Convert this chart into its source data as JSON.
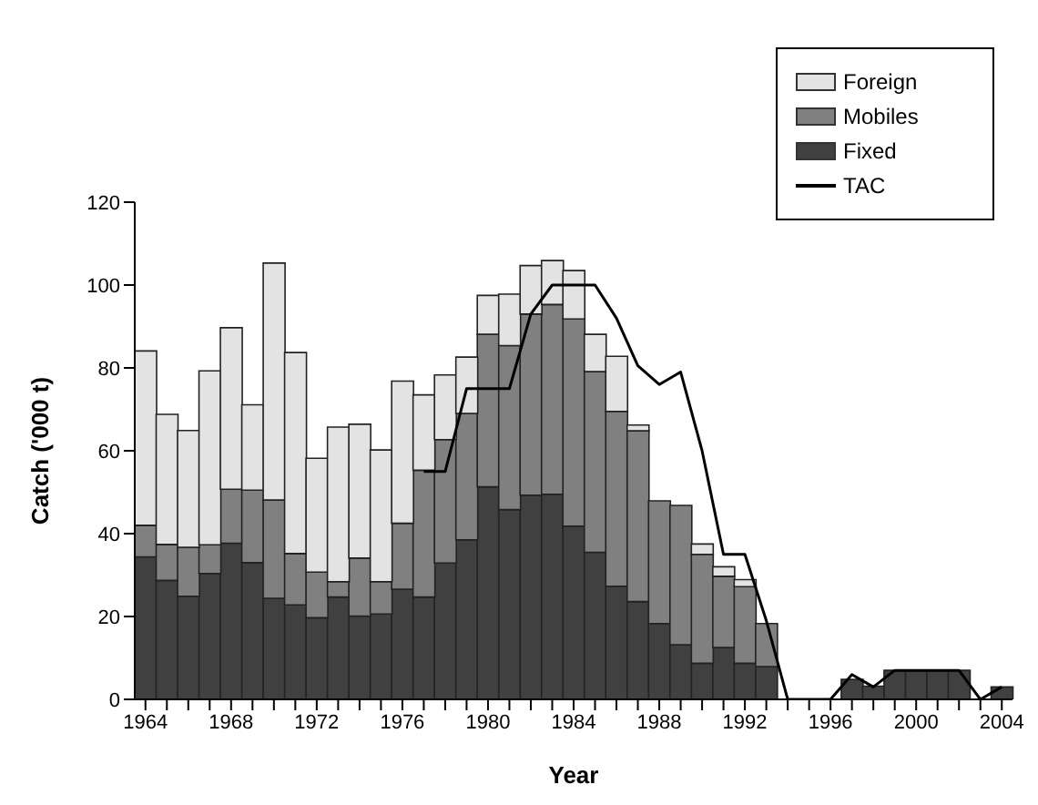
{
  "chart_data": {
    "type": "bar",
    "stacked": true,
    "xlabel": "Year",
    "ylabel": "Catch  ('000 t)",
    "categories": [
      "1964",
      null,
      null,
      null,
      "1968",
      null,
      null,
      null,
      "1972",
      null,
      null,
      null,
      "1976",
      null,
      null,
      null,
      "1980",
      null,
      null,
      null,
      "1984",
      null,
      null,
      null,
      "1988",
      null,
      null,
      null,
      "1992",
      null,
      null,
      null,
      "1996",
      null,
      null,
      null,
      "2000",
      null,
      null,
      null,
      "2004"
    ],
    "series": [
      {
        "name": "Fixed",
        "color": "#404040",
        "values": [
          34.4,
          28.7,
          24.9,
          30.4,
          37.7,
          33,
          24.4,
          22.8,
          19.7,
          24.7,
          20.1,
          20.6,
          26.6,
          24.7,
          32.9,
          38.5,
          51.3,
          45.8,
          49.3,
          49.5,
          41.8,
          35.5,
          27.3,
          23.6,
          18.3,
          13.2,
          8.7,
          12.5,
          8.7,
          7.9,
          0,
          0,
          0,
          4.8,
          3.2,
          7,
          7,
          7,
          7,
          0,
          3
        ]
      },
      {
        "name": "Mobiles",
        "color": "#808080",
        "values": [
          7.6,
          8.7,
          11.8,
          6.9,
          13,
          17.5,
          23.7,
          12.4,
          11,
          3.7,
          14,
          7.8,
          15.9,
          30.6,
          29.8,
          30.5,
          36.8,
          39.6,
          43.7,
          45.8,
          50,
          43.6,
          42.2,
          41.2,
          29.6,
          33.6,
          26.3,
          17.2,
          18.5,
          10.4,
          0,
          0,
          0,
          0,
          0,
          0,
          0,
          0,
          0,
          0,
          0
        ]
      },
      {
        "name": "Foreign",
        "color": "#e3e3e3",
        "values": [
          42.1,
          31.4,
          28.2,
          42,
          39,
          20.6,
          57.2,
          48.5,
          27.5,
          37.3,
          32.3,
          31.8,
          34.3,
          18.2,
          15.6,
          13.6,
          9.4,
          12.4,
          11.7,
          10.6,
          11.7,
          9,
          13.3,
          1.4,
          0,
          0,
          2.5,
          2.3,
          1.7,
          0,
          0,
          0,
          0,
          0,
          0,
          0,
          0,
          0,
          0,
          0,
          0
        ]
      },
      {
        "name": "TAC",
        "type": "line",
        "color": "#000000",
        "values": [
          null,
          null,
          null,
          null,
          null,
          null,
          null,
          null,
          null,
          null,
          null,
          null,
          null,
          55,
          55,
          75,
          75,
          75,
          93,
          100,
          100,
          100,
          92,
          80.5,
          76,
          79,
          60,
          35,
          35,
          19,
          0,
          0,
          0,
          6,
          3,
          7,
          7,
          7,
          7,
          0,
          3
        ]
      }
    ],
    "ylim": [
      0,
      120
    ],
    "yticks": [
      0,
      20,
      40,
      60,
      80,
      100,
      120
    ],
    "legend": "top right",
    "marker": "none"
  }
}
